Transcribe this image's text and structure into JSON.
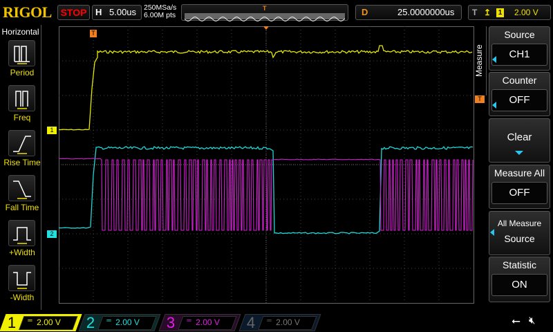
{
  "brand": "RIGOL",
  "run_state": "STOP",
  "horizontal": {
    "key": "H",
    "timebase": "5.00us",
    "sample_rate": "250MSa/s",
    "memory_depth": "6.00M pts"
  },
  "delay": {
    "key": "D",
    "value": "25.0000000us"
  },
  "trigger": {
    "key": "T",
    "slope_icon": "rising-edge",
    "source": "1",
    "level": "2.00 V"
  },
  "left_menu": {
    "title": "Horizontal",
    "items": [
      {
        "label": "Period",
        "icon": "period-icon"
      },
      {
        "label": "Freq",
        "icon": "freq-icon"
      },
      {
        "label": "Rise Time",
        "icon": "rise-time-icon"
      },
      {
        "label": "Fall Time",
        "icon": "fall-time-icon"
      },
      {
        "label": "+Width",
        "icon": "pos-width-icon"
      },
      {
        "label": "-Width",
        "icon": "neg-width-icon"
      }
    ]
  },
  "right_menu": {
    "tab": "Measure",
    "items": [
      {
        "label": "Source",
        "value": "CH1"
      },
      {
        "label": "Counter",
        "value": "OFF"
      },
      {
        "label": "Clear"
      },
      {
        "label": "Measure All",
        "value": "OFF"
      },
      {
        "label": "All Measure",
        "value": "Source"
      },
      {
        "label": "Statistic",
        "value": "ON"
      }
    ]
  },
  "markers": {
    "trigger": "T",
    "ch1": "1",
    "ch2": "2"
  },
  "channels": [
    {
      "num": "1",
      "scale": "2.00 V",
      "color": "#f0f000",
      "active": true
    },
    {
      "num": "2",
      "scale": "2.00 V",
      "color": "#00e0e0"
    },
    {
      "num": "3",
      "scale": "2.00 V",
      "color": "#e020e0"
    },
    {
      "num": "4",
      "scale": "2.00 V",
      "color": "#666666"
    }
  ],
  "colors": {
    "ch1": "#e8e800",
    "ch2": "#20d8d8",
    "ch3": "#d020d0",
    "trigger": "#f08020",
    "accent": "#29c6f0"
  }
}
